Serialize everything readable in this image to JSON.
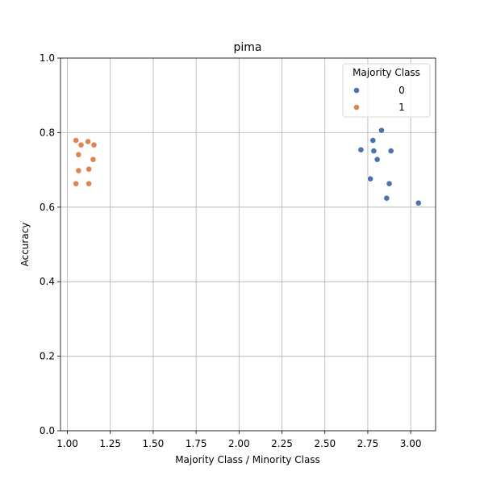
{
  "chart_data": {
    "type": "scatter",
    "title": "pima",
    "xlabel": "Majority Class / Minority Class",
    "ylabel": "Accuracy",
    "xlim": [
      0.96,
      3.145
    ],
    "ylim": [
      0.0,
      1.0
    ],
    "x_ticks": [
      1.0,
      1.25,
      1.5,
      1.75,
      2.0,
      2.25,
      2.5,
      2.75,
      3.0
    ],
    "x_tick_labels": [
      "1.00",
      "1.25",
      "1.50",
      "1.75",
      "2.00",
      "2.25",
      "2.50",
      "2.75",
      "3.00"
    ],
    "y_ticks": [
      0.0,
      0.2,
      0.4,
      0.6,
      0.8,
      1.0
    ],
    "y_tick_labels": [
      "0.0",
      "0.2",
      "0.4",
      "0.6",
      "0.8",
      "1.0"
    ],
    "grid": true,
    "legend": {
      "title": "Majority Class",
      "placement": "top-right"
    },
    "series": [
      {
        "name": "0",
        "color": "#4c72b0",
        "points": [
          {
            "x": 2.83,
            "y": 0.806
          },
          {
            "x": 2.78,
            "y": 0.779
          },
          {
            "x": 2.71,
            "y": 0.754
          },
          {
            "x": 2.785,
            "y": 0.751
          },
          {
            "x": 2.885,
            "y": 0.751
          },
          {
            "x": 2.805,
            "y": 0.728
          },
          {
            "x": 2.765,
            "y": 0.676
          },
          {
            "x": 2.875,
            "y": 0.663
          },
          {
            "x": 2.86,
            "y": 0.624
          },
          {
            "x": 3.045,
            "y": 0.611
          }
        ]
      },
      {
        "name": "1",
        "color": "#dd8452",
        "points": [
          {
            "x": 1.05,
            "y": 0.779
          },
          {
            "x": 1.12,
            "y": 0.776
          },
          {
            "x": 1.08,
            "y": 0.767
          },
          {
            "x": 1.155,
            "y": 0.767
          },
          {
            "x": 1.065,
            "y": 0.741
          },
          {
            "x": 1.15,
            "y": 0.728
          },
          {
            "x": 1.065,
            "y": 0.698
          },
          {
            "x": 1.125,
            "y": 0.702
          },
          {
            "x": 1.05,
            "y": 0.663
          },
          {
            "x": 1.125,
            "y": 0.663
          }
        ]
      }
    ]
  }
}
